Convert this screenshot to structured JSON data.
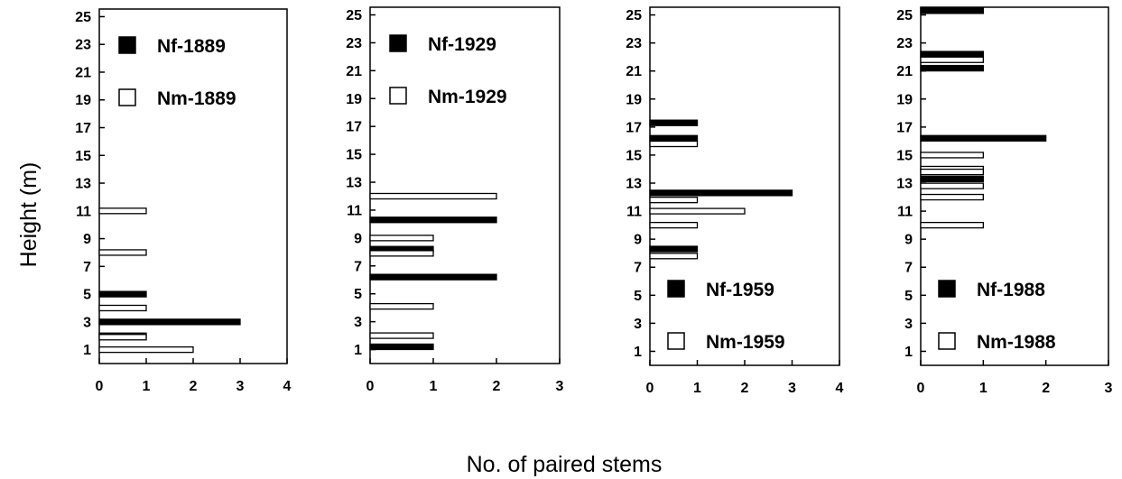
{
  "figure": {
    "ylabel": "Height (m)",
    "xlabel": "No. of paired stems"
  },
  "chart_data": [
    {
      "type": "bar",
      "orientation": "horizontal",
      "xlim": [
        0,
        4
      ],
      "ylim": [
        0,
        25
      ],
      "xticks": [
        0,
        1,
        2,
        3,
        4
      ],
      "yticks": [
        1,
        3,
        5,
        7,
        9,
        11,
        13,
        15,
        17,
        19,
        21,
        23,
        25
      ],
      "legend_position": "top-left",
      "series": [
        {
          "name": "Nf-1889",
          "color": "#000000",
          "fill": "filled",
          "points": [
            {
              "y": 5,
              "x": 1
            },
            {
              "y": 3,
              "x": 3
            },
            {
              "y": 2,
              "x": 1
            }
          ]
        },
        {
          "name": "Nm-1889",
          "color": "#ffffff",
          "fill": "open",
          "points": [
            {
              "y": 11,
              "x": 1
            },
            {
              "y": 8,
              "x": 1
            },
            {
              "y": 4,
              "x": 1
            },
            {
              "y": 1.9,
              "x": 1
            },
            {
              "y": 1,
              "x": 2
            }
          ]
        }
      ]
    },
    {
      "type": "bar",
      "orientation": "horizontal",
      "xlim": [
        0,
        3
      ],
      "ylim": [
        0,
        25
      ],
      "xticks": [
        0,
        1,
        2,
        3
      ],
      "yticks": [
        1,
        3,
        5,
        7,
        9,
        11,
        13,
        15,
        17,
        19,
        21,
        23,
        25
      ],
      "legend_position": "top-left",
      "series": [
        {
          "name": "Nf-1929",
          "color": "#000000",
          "fill": "filled",
          "points": [
            {
              "y": 10.3,
              "x": 2
            },
            {
              "y": 8.2,
              "x": 1
            },
            {
              "y": 6.2,
              "x": 2
            },
            {
              "y": 1.2,
              "x": 1
            }
          ]
        },
        {
          "name": "Nm-1929",
          "color": "#ffffff",
          "fill": "open",
          "points": [
            {
              "y": 12,
              "x": 2
            },
            {
              "y": 9,
              "x": 1
            },
            {
              "y": 7.9,
              "x": 1
            },
            {
              "y": 4.1,
              "x": 1
            },
            {
              "y": 2,
              "x": 1
            }
          ]
        }
      ]
    },
    {
      "type": "bar",
      "orientation": "horizontal",
      "xlim": [
        0,
        4
      ],
      "ylim": [
        0,
        25
      ],
      "xticks": [
        0,
        1,
        2,
        3,
        4
      ],
      "yticks": [
        1,
        3,
        5,
        7,
        9,
        11,
        13,
        15,
        17,
        19,
        21,
        23,
        25
      ],
      "legend_position": "bottom-left",
      "series": [
        {
          "name": "Nf-1959",
          "color": "#000000",
          "fill": "filled",
          "points": [
            {
              "y": 17.3,
              "x": 1
            },
            {
              "y": 16.2,
              "x": 1
            },
            {
              "y": 12.3,
              "x": 3
            },
            {
              "y": 8.3,
              "x": 1
            }
          ]
        },
        {
          "name": "Nm-1959",
          "color": "#ffffff",
          "fill": "open",
          "points": [
            {
              "y": 15.8,
              "x": 1
            },
            {
              "y": 11.8,
              "x": 1
            },
            {
              "y": 11,
              "x": 2
            },
            {
              "y": 10,
              "x": 1
            },
            {
              "y": 7.8,
              "x": 1
            }
          ]
        }
      ]
    },
    {
      "type": "bar",
      "orientation": "horizontal",
      "xlim": [
        0,
        3
      ],
      "ylim": [
        0,
        25
      ],
      "xticks": [
        0,
        1,
        2,
        3
      ],
      "yticks": [
        1,
        3,
        5,
        7,
        9,
        11,
        13,
        15,
        17,
        19,
        21,
        23,
        25
      ],
      "legend_position": "bottom-left",
      "series": [
        {
          "name": "Nf-1988",
          "color": "#000000",
          "fill": "filled",
          "points": [
            {
              "y": 25.3,
              "x": 1
            },
            {
              "y": 22.2,
              "x": 1
            },
            {
              "y": 21.2,
              "x": 1
            },
            {
              "y": 16.2,
              "x": 2
            },
            {
              "y": 13.3,
              "x": 1
            }
          ]
        },
        {
          "name": "Nm-1988",
          "color": "#ffffff",
          "fill": "open",
          "points": [
            {
              "y": 21.8,
              "x": 1
            },
            {
              "y": 15,
              "x": 1
            },
            {
              "y": 14,
              "x": 1
            },
            {
              "y": 13.8,
              "x": 1
            },
            {
              "y": 12.8,
              "x": 1
            },
            {
              "y": 12,
              "x": 1
            },
            {
              "y": 10,
              "x": 1
            }
          ]
        }
      ]
    }
  ]
}
